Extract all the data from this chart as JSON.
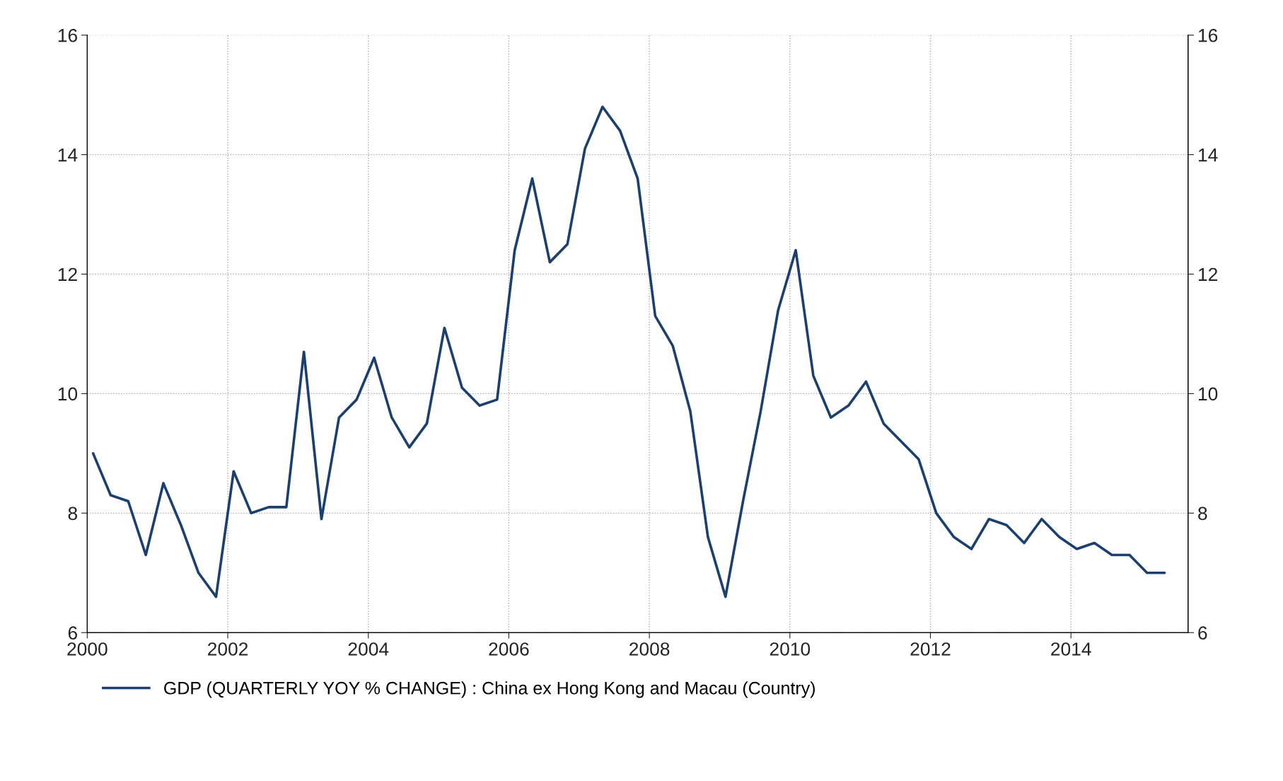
{
  "chart_data": {
    "type": "line",
    "x": [
      "2000-02",
      "2000-05",
      "2000-08",
      "2000-11",
      "2001-02",
      "2001-05",
      "2001-08",
      "2001-11",
      "2002-02",
      "2002-05",
      "2002-08",
      "2002-11",
      "2003-02",
      "2003-05",
      "2003-08",
      "2003-11",
      "2004-02",
      "2004-05",
      "2004-08",
      "2004-11",
      "2005-02",
      "2005-05",
      "2005-08",
      "2005-11",
      "2006-02",
      "2006-05",
      "2006-08",
      "2006-11",
      "2007-02",
      "2007-05",
      "2007-08",
      "2007-11",
      "2008-02",
      "2008-05",
      "2008-08",
      "2008-11",
      "2009-02",
      "2009-05",
      "2009-08",
      "2009-11",
      "2010-02",
      "2010-05",
      "2010-08",
      "2010-11",
      "2011-02",
      "2011-05",
      "2011-08",
      "2011-11",
      "2012-02",
      "2012-05",
      "2012-08",
      "2012-11",
      "2013-02",
      "2013-05",
      "2013-08",
      "2013-11",
      "2014-02",
      "2014-05",
      "2014-08",
      "2014-11",
      "2015-02",
      "2015-05"
    ],
    "series": [
      {
        "name": "GDP (QUARTERLY YOY % CHANGE) : China ex Hong Kong and Macau (Country)",
        "color": "#1b3f6e",
        "values": [
          9.0,
          8.3,
          8.2,
          7.3,
          8.5,
          7.8,
          7.0,
          6.6,
          8.7,
          8.0,
          8.1,
          8.1,
          10.7,
          7.9,
          9.6,
          9.9,
          10.6,
          9.6,
          9.1,
          9.5,
          11.1,
          10.1,
          9.8,
          9.9,
          12.4,
          13.6,
          12.2,
          12.5,
          14.1,
          14.8,
          14.4,
          13.6,
          11.3,
          10.8,
          9.7,
          7.6,
          6.6,
          8.2,
          9.7,
          11.4,
          12.4,
          10.3,
          9.6,
          9.8,
          10.2,
          9.5,
          9.2,
          8.9,
          8.0,
          7.6,
          7.4,
          7.9,
          7.8,
          7.5,
          7.9,
          7.6,
          7.4,
          7.5,
          7.3,
          7.3,
          7.0,
          7.0
        ]
      }
    ],
    "xlim": [
      "2000",
      "2015-09"
    ],
    "xticks": [
      {
        "value": "2000",
        "label": "2000"
      },
      {
        "value": "2002",
        "label": "2002"
      },
      {
        "value": "2004",
        "label": "2004"
      },
      {
        "value": "2006",
        "label": "2006"
      },
      {
        "value": "2008",
        "label": "2008"
      },
      {
        "value": "2010",
        "label": "2010"
      },
      {
        "value": "2012",
        "label": "2012"
      },
      {
        "value": "2014",
        "label": "2014"
      }
    ],
    "ylim": [
      6,
      16
    ],
    "yticks": [
      6,
      8,
      10,
      12,
      14,
      16
    ],
    "y2lim": [
      6,
      16
    ],
    "y2ticks": [
      6,
      8,
      10,
      12,
      14,
      16
    ],
    "grid": true,
    "legend": "bottom",
    "marker": "none",
    "line_style": "solid"
  }
}
